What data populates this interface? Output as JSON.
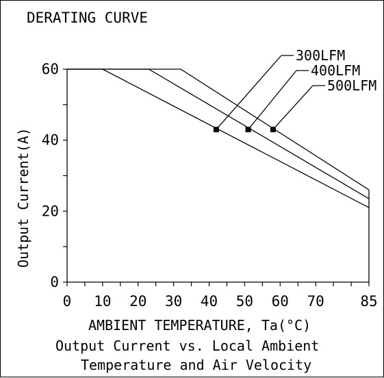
{
  "chart_data": {
    "type": "line",
    "title": "DERATING CURVE",
    "xlabel": "AMBIENT TEMPERATURE, Ta(°C)",
    "ylabel": "Output Current(A)",
    "caption": [
      "Output Current vs. Local Ambient",
      "Temperature and Air Velocity"
    ],
    "xlim": [
      0,
      85
    ],
    "ylim": [
      0,
      60
    ],
    "x_ticks": [
      0,
      10,
      20,
      30,
      40,
      50,
      60,
      70,
      85
    ],
    "y_ticks": [
      0,
      20,
      40,
      60
    ],
    "grid": false,
    "series": [
      {
        "name": "300LFM",
        "x": [
          0,
          10,
          85
        ],
        "y": [
          60,
          60,
          21
        ],
        "marker_point": [
          42,
          43
        ]
      },
      {
        "name": "400LFM",
        "x": [
          0,
          23,
          85
        ],
        "y": [
          60,
          60,
          23.5
        ],
        "marker_point": [
          51,
          43
        ]
      },
      {
        "name": "500LFM",
        "x": [
          0,
          32,
          85
        ],
        "y": [
          60,
          60,
          26
        ],
        "marker_point": [
          58,
          43
        ]
      }
    ]
  }
}
